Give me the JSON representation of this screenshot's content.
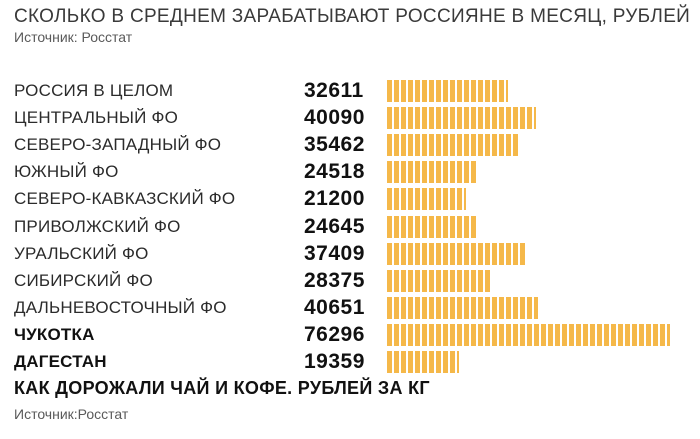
{
  "title": "СКОЛЬКО В СРЕДНЕМ ЗАРАБАТЫВАЮТ РОССИЯНЕ В МЕСЯЦ, РУБЛЕЙ",
  "source_top": "Источник: Росстат",
  "subheading": "КАК ДОРОЖАЛИ ЧАЙ И КОФЕ. РУБЛЕЙ ЗА КГ",
  "source_bottom": "Источник:Росстат",
  "colors": {
    "bar": "#f5b849",
    "text": "#1a1a1a"
  },
  "chart_data": {
    "type": "bar",
    "orientation": "horizontal",
    "title": "СКОЛЬКО В СРЕДНЕМ ЗАРАБАТЫВАЮТ РОССИЯНЕ В МЕСЯЦ, РУБЛЕЙ",
    "categories": [
      "РОССИЯ В ЦЕЛОМ",
      "ЦЕНТРАЛЬНЫЙ ФО",
      "СЕВЕРО-ЗАПАДНЫЙ ФО",
      "ЮЖНЫЙ ФО",
      "СЕВЕРО-КАВКАЗСКИЙ ФО",
      "ПРИВОЛЖСКИЙ ФО",
      "УРАЛЬСКИЙ ФО",
      "СИБИРСКИЙ ФО",
      "ДАЛЬНЕВОСТОЧНЫЙ ФО",
      "ЧУКОТКА",
      "ДАГЕСТАН"
    ],
    "values": [
      32611,
      40090,
      35462,
      24518,
      21200,
      24645,
      37409,
      28375,
      40651,
      76296,
      19359
    ],
    "bold_categories": [
      "ЧУКОТКА",
      "ДАГЕСТАН"
    ],
    "grid": false,
    "legend": "none"
  }
}
